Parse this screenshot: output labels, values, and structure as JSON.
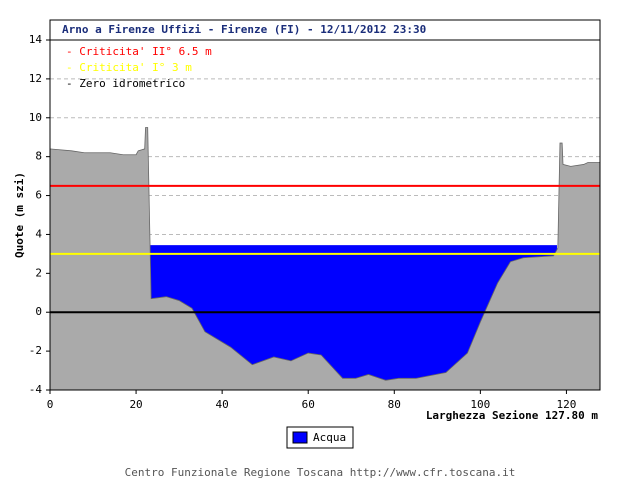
{
  "chart_data": {
    "type": "cross-section",
    "title": "Arno a Firenze Uffizi - Firenze (FI) - 12/11/2012 23:30",
    "y_label": "Quote (m szi)",
    "x_label": "Larghezza Sezione 127.80 m",
    "footer": "Centro Funzionale Regione Toscana http://www.cfr.toscana.it",
    "xlim": [
      0,
      127.8
    ],
    "ylim": [
      -4,
      14
    ],
    "xticks": [
      0,
      20,
      40,
      60,
      80,
      100,
      120
    ],
    "yticks": [
      -4,
      -2,
      0,
      2,
      4,
      6,
      8,
      10,
      12,
      14
    ],
    "grid": true,
    "ground": {
      "color": "#aaaaaa",
      "x": [
        0,
        5,
        8,
        14,
        17,
        20,
        20.5,
        22,
        22.2,
        22.7,
        23.5,
        27,
        30,
        33,
        36,
        42,
        47,
        52,
        56,
        60,
        63,
        68,
        71,
        74,
        78,
        81,
        85,
        92,
        97,
        100,
        104,
        107,
        110,
        117,
        118,
        118.5,
        119,
        119.2,
        121,
        124,
        125,
        127.8
      ],
      "values": [
        8.4,
        8.3,
        8.2,
        8.2,
        8.1,
        8.1,
        8.3,
        8.4,
        9.5,
        9.5,
        0.7,
        0.8,
        0.6,
        0.2,
        -1,
        -1.8,
        -2.7,
        -2.3,
        -2.5,
        -2.1,
        -2.2,
        -3.4,
        -3.4,
        -3.2,
        -3.5,
        -3.4,
        -3.4,
        -3.1,
        -2.1,
        -0.5,
        1.5,
        2.6,
        2.8,
        2.9,
        3.3,
        8.7,
        8.7,
        7.6,
        7.5,
        7.6,
        7.7,
        7.7
      ]
    },
    "water": {
      "name": "Acqua",
      "color": "#0000ff",
      "level": 3.45,
      "extent": [
        23.3,
        117.8
      ]
    },
    "thresholds": [
      {
        "label": "- Criticita' II° 6.5 m",
        "value": 6.5,
        "color": "#ff0000"
      },
      {
        "label": "- Criticita' I° 3 m",
        "value": 3,
        "color": "#ffff00"
      },
      {
        "label": "- Zero idrometrico",
        "value": 0,
        "color": "#000000"
      }
    ]
  }
}
